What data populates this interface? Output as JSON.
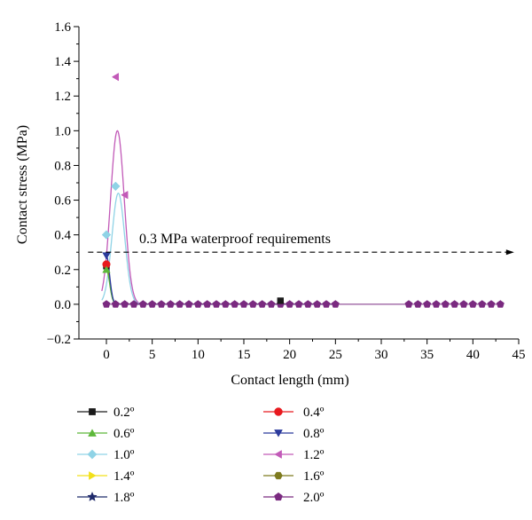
{
  "chart_data": {
    "type": "scatter",
    "xlabel": "Contact length (mm)",
    "ylabel": "Contact stress (MPa)",
    "xlim": [
      -3,
      45
    ],
    "ylim": [
      -0.2,
      1.6
    ],
    "xticks": [
      0,
      5,
      10,
      15,
      20,
      25,
      30,
      35,
      40,
      45
    ],
    "yticks": [
      -0.2,
      0.0,
      0.2,
      0.4,
      0.6,
      0.8,
      1.0,
      1.2,
      1.4,
      1.6
    ],
    "xtick_labels": [
      "0",
      "5",
      "10",
      "15",
      "20",
      "25",
      "30",
      "35",
      "40",
      "45"
    ],
    "ytick_labels": [
      "−0.2",
      "0.0",
      "0.2",
      "0.4",
      "0.6",
      "0.8",
      "1.0",
      "1.2",
      "1.4",
      "1.6"
    ],
    "grid": false,
    "legend_position": "bottom",
    "annotation": {
      "text": "0.3 MPa waterproof requirements",
      "y": 0.3,
      "line_style": "dashed-arrow",
      "x_start": -2,
      "x_end": 44.5
    },
    "series": [
      {
        "name": "0.2º",
        "marker": "square",
        "color": "#1a1a1a",
        "x": [
          0,
          1,
          2,
          3,
          4,
          5,
          6,
          7,
          8,
          9,
          10,
          11,
          12,
          13,
          14,
          15,
          16,
          17,
          18,
          19,
          20,
          21,
          22,
          23,
          24,
          25,
          33,
          34,
          35,
          36,
          37,
          38,
          39,
          40,
          41,
          42,
          43
        ],
        "y": [
          0.22,
          0,
          0,
          0,
          0,
          0,
          0,
          0,
          0,
          0,
          0,
          0,
          0,
          0,
          0,
          0,
          0,
          0,
          0,
          0.02,
          0,
          0,
          0,
          0,
          0,
          0,
          0,
          0,
          0,
          0,
          0,
          0,
          0,
          0,
          0,
          0,
          0
        ]
      },
      {
        "name": "0.4º",
        "marker": "circle",
        "color": "#e8191e",
        "x": [
          0,
          1,
          2,
          3,
          4,
          5,
          6,
          7,
          8,
          9,
          10,
          11,
          12,
          13,
          14,
          15,
          16,
          17,
          18,
          19,
          20,
          21,
          22,
          23,
          24,
          25,
          33,
          34,
          35,
          36,
          37,
          38,
          39,
          40,
          41,
          42,
          43
        ],
        "y": [
          0.23,
          0,
          0,
          0,
          0,
          0,
          0,
          0,
          0,
          0,
          0,
          0,
          0,
          0,
          0,
          0,
          0,
          0,
          0,
          0,
          0,
          0,
          0,
          0,
          0,
          0,
          0,
          0,
          0,
          0,
          0,
          0,
          0,
          0,
          0,
          0,
          0
        ]
      },
      {
        "name": "0.6º",
        "marker": "triangle-up",
        "color": "#5db83a",
        "x": [
          0,
          1,
          2,
          3,
          4,
          5,
          6,
          7,
          8,
          9,
          10,
          11,
          12,
          13,
          14,
          15,
          16,
          17,
          18,
          19,
          20,
          21,
          22,
          23,
          24,
          25,
          33,
          34,
          35,
          36,
          37,
          38,
          39,
          40,
          41,
          42,
          43
        ],
        "y": [
          0.2,
          0,
          0,
          0,
          0,
          0,
          0,
          0,
          0,
          0,
          0,
          0,
          0,
          0,
          0,
          0,
          0,
          0,
          0,
          0,
          0,
          0,
          0,
          0,
          0,
          0,
          0,
          0,
          0,
          0,
          0,
          0,
          0,
          0,
          0,
          0,
          0
        ]
      },
      {
        "name": "0.8º",
        "marker": "triangle-down",
        "color": "#2b3a9c",
        "x": [
          0,
          1,
          2,
          3,
          4,
          5,
          6,
          7,
          8,
          9,
          10,
          11,
          12,
          13,
          14,
          15,
          16,
          17,
          18,
          19,
          20,
          21,
          22,
          23,
          24,
          25,
          33,
          34,
          35,
          36,
          37,
          38,
          39,
          40,
          41,
          42,
          43
        ],
        "y": [
          0.28,
          0,
          0,
          0,
          0,
          0,
          0,
          0,
          0,
          0,
          0,
          0,
          0,
          0,
          0,
          0,
          0,
          0,
          0,
          0,
          0,
          0,
          0,
          0,
          0,
          0,
          0,
          0,
          0,
          0,
          0,
          0,
          0,
          0,
          0,
          0,
          0
        ]
      },
      {
        "name": "1.0º",
        "marker": "diamond",
        "color": "#8fd3e6",
        "x": [
          0,
          1,
          2,
          3,
          4,
          5,
          6,
          7,
          8,
          9,
          10,
          11,
          12,
          13,
          14,
          15,
          16,
          17,
          18,
          19,
          20,
          21,
          22,
          23,
          24,
          25,
          33,
          34,
          35,
          36,
          37,
          38,
          39,
          40,
          41,
          42,
          43
        ],
        "y": [
          0.4,
          0.68,
          0,
          0,
          0,
          0,
          0,
          0,
          0,
          0,
          0,
          0,
          0,
          0,
          0,
          0,
          0,
          0,
          0,
          0,
          0,
          0,
          0,
          0,
          0,
          0,
          0,
          0,
          0,
          0,
          0,
          0,
          0,
          0,
          0,
          0,
          0
        ]
      },
      {
        "name": "1.2º",
        "marker": "triangle-left",
        "color": "#c25ab8",
        "x": [
          0,
          1,
          2,
          3,
          4,
          5,
          6,
          7,
          8,
          9,
          10,
          11,
          12,
          13,
          14,
          15,
          16,
          17,
          18,
          19,
          20,
          21,
          22,
          23,
          24,
          25,
          33,
          34,
          35,
          36,
          37,
          38,
          39,
          40,
          41,
          42,
          43
        ],
        "y": [
          0,
          1.31,
          0.63,
          0,
          0,
          0,
          0,
          0,
          0,
          0,
          0,
          0,
          0,
          0,
          0,
          0,
          0,
          0,
          0,
          0,
          0,
          0,
          0,
          0,
          0,
          0,
          0,
          0,
          0,
          0,
          0,
          0,
          0,
          0,
          0,
          0,
          0
        ]
      },
      {
        "name": "1.4º",
        "marker": "triangle-right",
        "color": "#f2e01a",
        "x": [
          0,
          1,
          2,
          3,
          4,
          5,
          6,
          7,
          8,
          9,
          10,
          11,
          12,
          13,
          14,
          15,
          16,
          17,
          18,
          19,
          20,
          21,
          22,
          23,
          24,
          25,
          33,
          34,
          35,
          36,
          37,
          38,
          39,
          40,
          41,
          42,
          43
        ],
        "y": [
          0,
          0,
          0,
          0,
          0,
          0,
          0,
          0,
          0,
          0,
          0,
          0,
          0,
          0,
          0,
          0,
          0,
          0,
          0,
          0,
          0,
          0,
          0,
          0,
          0,
          0,
          0,
          0,
          0,
          0,
          0,
          0,
          0,
          0,
          0,
          0,
          0
        ]
      },
      {
        "name": "1.6º",
        "marker": "hexagon",
        "color": "#7d7a1e",
        "x": [
          0,
          1,
          2,
          3,
          4,
          5,
          6,
          7,
          8,
          9,
          10,
          11,
          12,
          13,
          14,
          15,
          16,
          17,
          18,
          19,
          20,
          21,
          22,
          23,
          24,
          25,
          33,
          34,
          35,
          36,
          37,
          38,
          39,
          40,
          41,
          42,
          43
        ],
        "y": [
          0,
          0,
          0,
          0,
          0,
          0,
          0,
          0,
          0,
          0,
          0,
          0,
          0,
          0,
          0,
          0,
          0,
          0,
          0,
          0,
          0,
          0,
          0,
          0,
          0,
          0,
          0,
          0,
          0,
          0,
          0,
          0,
          0,
          0,
          0,
          0,
          0
        ]
      },
      {
        "name": "1.8º",
        "marker": "star",
        "color": "#1f2a6b",
        "x": [
          0,
          1,
          2,
          3,
          4,
          5,
          6,
          7,
          8,
          9,
          10,
          11,
          12,
          13,
          14,
          15,
          16,
          17,
          18,
          19,
          20,
          21,
          22,
          23,
          24,
          25,
          33,
          34,
          35,
          36,
          37,
          38,
          39,
          40,
          41,
          42,
          43
        ],
        "y": [
          0,
          0,
          0,
          0,
          0,
          0,
          0,
          0,
          0,
          0,
          0,
          0,
          0,
          0,
          0,
          0,
          0,
          0,
          0,
          0,
          0,
          0,
          0,
          0,
          0,
          0,
          0,
          0,
          0,
          0,
          0,
          0,
          0,
          0,
          0,
          0,
          0
        ]
      },
      {
        "name": "2.0º",
        "marker": "pentagon",
        "color": "#7a2a80",
        "x": [
          0,
          1,
          2,
          3,
          4,
          5,
          6,
          7,
          8,
          9,
          10,
          11,
          12,
          13,
          14,
          15,
          16,
          17,
          18,
          19,
          20,
          21,
          22,
          23,
          24,
          25,
          33,
          34,
          35,
          36,
          37,
          38,
          39,
          40,
          41,
          42,
          43
        ],
        "y": [
          0,
          0,
          0,
          0,
          0,
          0,
          0,
          0,
          0,
          0,
          0,
          0,
          0,
          0,
          0,
          0,
          0,
          0,
          0,
          0,
          0,
          0,
          0,
          0,
          0,
          0,
          0,
          0,
          0,
          0,
          0,
          0,
          0,
          0,
          0,
          0,
          0
        ]
      }
    ],
    "fit_curves": [
      {
        "series": "1.2º",
        "color": "#c25ab8",
        "shape": "gaussian",
        "peak_x": 1.2,
        "peak_y": 1.0,
        "sigma": 0.75
      },
      {
        "series": "1.0º",
        "color": "#8fd3e6",
        "shape": "gaussian",
        "peak_x": 1.3,
        "peak_y": 0.64,
        "sigma": 0.7
      },
      {
        "series": "0.2º",
        "color": "#1a1a1a",
        "shape": "decay",
        "peak_x": 0,
        "peak_y": 0.22,
        "sigma": 0.35
      },
      {
        "series": "0.4º",
        "color": "#e8191e",
        "shape": "decay",
        "peak_x": 0,
        "peak_y": 0.23,
        "sigma": 0.35
      },
      {
        "series": "0.6º",
        "color": "#5db83a",
        "shape": "decay",
        "peak_x": 0,
        "peak_y": 0.2,
        "sigma": 0.35
      },
      {
        "series": "0.8º",
        "color": "#2b3a9c",
        "shape": "decay",
        "peak_x": 0,
        "peak_y": 0.28,
        "sigma": 0.35
      }
    ]
  }
}
